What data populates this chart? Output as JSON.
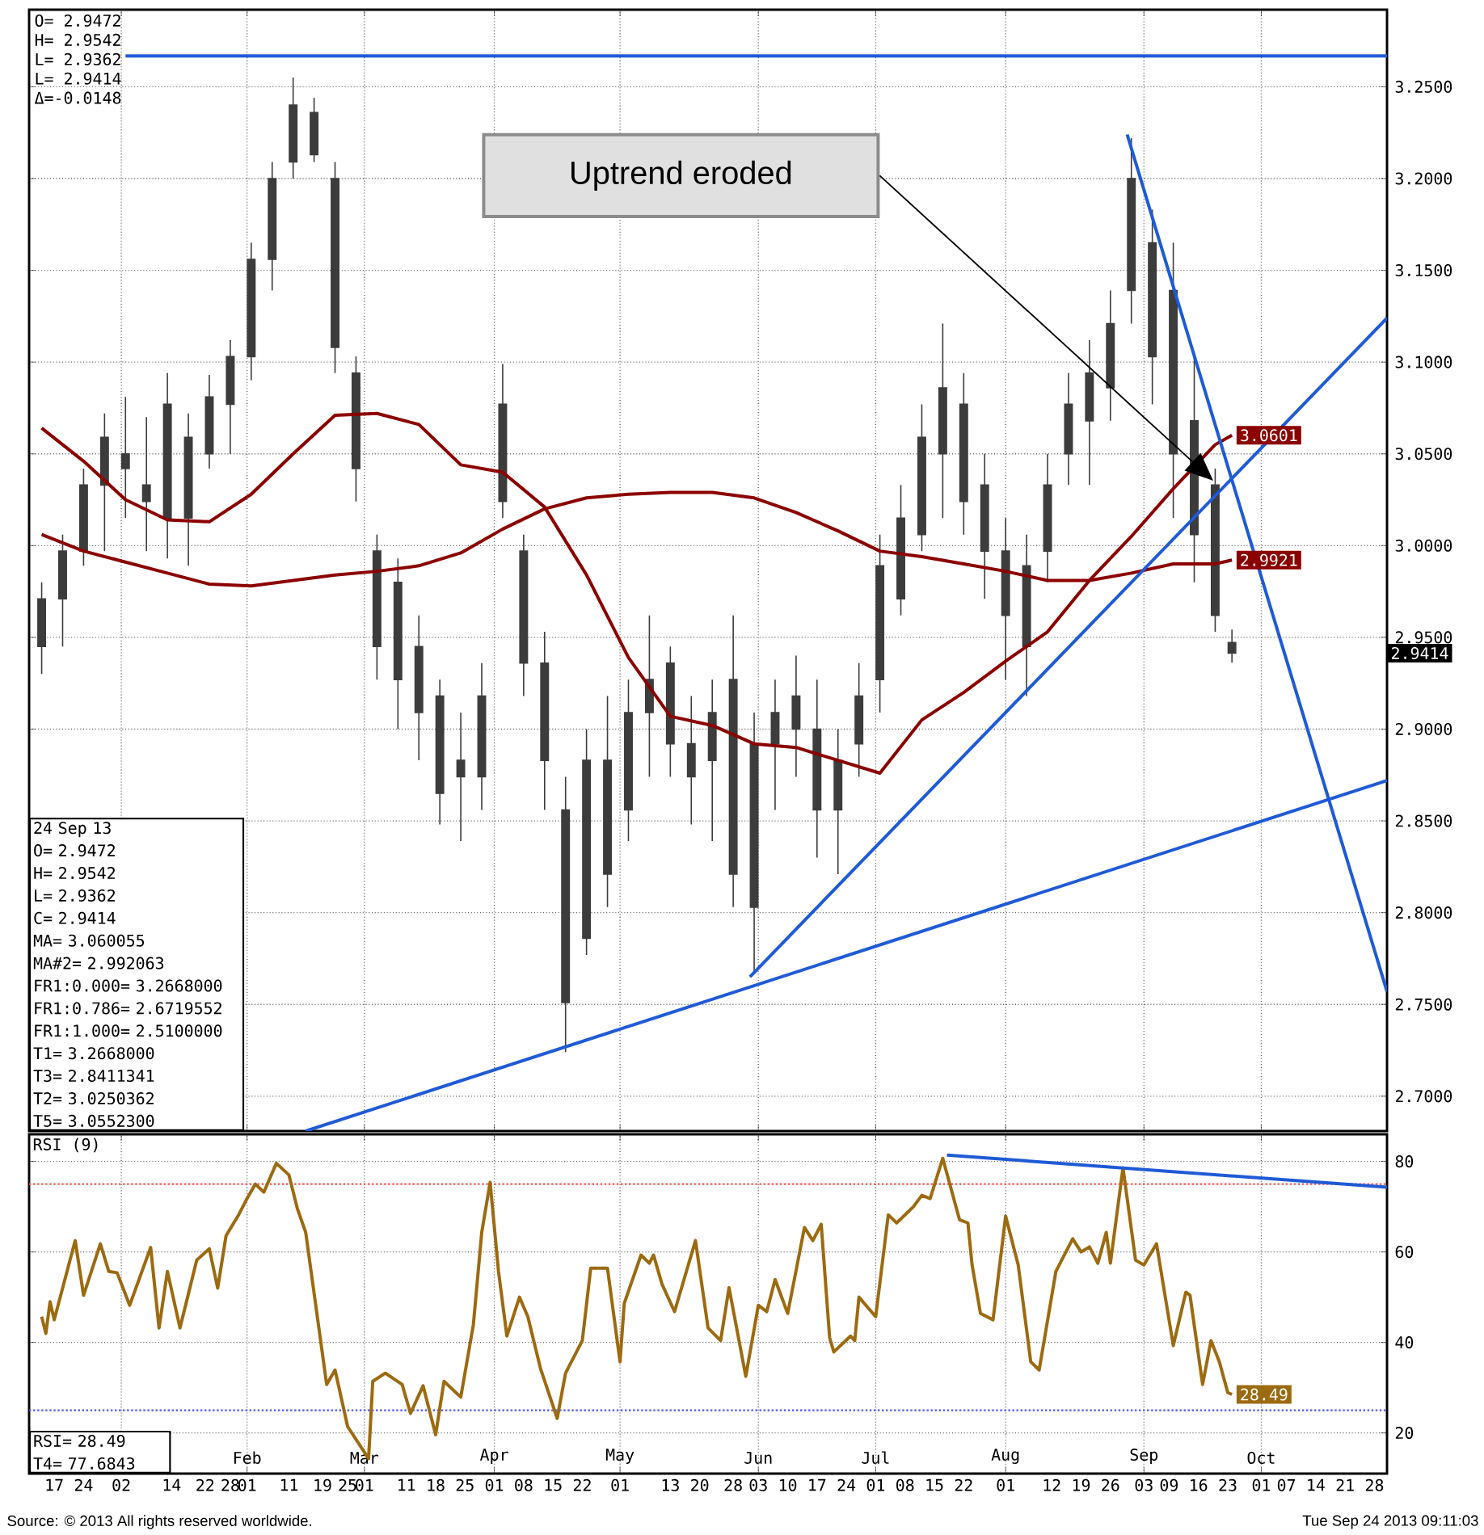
{
  "chart_data": [
    {
      "type": "candlestick",
      "color": "#3c3c3c",
      "x": [
        "2012-12-14",
        "2012-12-19",
        "2012-12-24",
        "2012-12-29",
        "2013-01-03",
        "2013-01-08",
        "2013-01-13",
        "2013-01-18",
        "2013-01-23",
        "2013-01-28",
        "2013-02-02",
        "2013-02-07",
        "2013-02-12",
        "2013-02-17",
        "2013-02-22",
        "2013-02-27",
        "2013-03-04",
        "2013-03-09",
        "2013-03-14",
        "2013-03-19",
        "2013-03-24",
        "2013-03-29",
        "2013-04-03",
        "2013-04-08",
        "2013-04-13",
        "2013-04-18",
        "2013-04-23",
        "2013-04-28",
        "2013-05-03",
        "2013-05-08",
        "2013-05-13",
        "2013-05-18",
        "2013-05-23",
        "2013-05-28",
        "2013-06-02",
        "2013-06-07",
        "2013-06-12",
        "2013-06-17",
        "2013-06-22",
        "2013-06-27",
        "2013-07-02",
        "2013-07-07",
        "2013-07-12",
        "2013-07-17",
        "2013-07-22",
        "2013-07-27",
        "2013-08-01",
        "2013-08-06",
        "2013-08-11",
        "2013-08-16",
        "2013-08-21",
        "2013-08-26",
        "2013-08-31",
        "2013-09-05",
        "2013-09-10",
        "2013-09-15",
        "2013-09-20",
        "2013-09-24"
      ],
      "ohlc": [
        [
          2.945,
          2.98,
          2.93,
          2.971
        ],
        [
          2.971,
          3.006,
          2.945,
          2.997
        ],
        [
          2.997,
          3.042,
          2.989,
          3.033
        ],
        [
          3.033,
          3.072,
          2.997,
          3.059
        ],
        [
          3.05,
          3.081,
          3.015,
          3.042
        ],
        [
          3.033,
          3.07,
          2.997,
          3.024
        ],
        [
          3.015,
          3.094,
          2.993,
          3.077
        ],
        [
          3.059,
          3.072,
          2.989,
          3.015
        ],
        [
          3.05,
          3.093,
          3.042,
          3.081
        ],
        [
          3.077,
          3.112,
          3.05,
          3.103
        ],
        [
          3.103,
          3.165,
          3.09,
          3.156
        ],
        [
          3.156,
          3.209,
          3.139,
          3.2
        ],
        [
          3.209,
          3.255,
          3.2,
          3.24
        ],
        [
          3.236,
          3.244,
          3.209,
          3.213
        ],
        [
          3.2,
          3.209,
          3.094,
          3.108
        ],
        [
          3.094,
          3.103,
          3.024,
          3.042
        ],
        [
          2.997,
          3.006,
          2.927,
          2.945
        ],
        [
          2.98,
          2.993,
          2.9,
          2.927
        ],
        [
          2.945,
          2.962,
          2.883,
          2.909
        ],
        [
          2.918,
          2.927,
          2.848,
          2.865
        ],
        [
          2.883,
          2.909,
          2.839,
          2.874
        ],
        [
          2.874,
          2.936,
          2.856,
          2.918
        ],
        [
          3.024,
          3.099,
          3.015,
          3.077
        ],
        [
          2.997,
          3.006,
          2.918,
          2.936
        ],
        [
          2.936,
          2.953,
          2.856,
          2.883
        ],
        [
          2.856,
          2.874,
          2.724,
          2.751
        ],
        [
          2.786,
          2.9,
          2.777,
          2.883
        ],
        [
          2.883,
          2.918,
          2.803,
          2.821
        ],
        [
          2.856,
          2.927,
          2.839,
          2.909
        ],
        [
          2.909,
          2.962,
          2.874,
          2.927
        ],
        [
          2.936,
          2.945,
          2.874,
          2.892
        ],
        [
          2.892,
          2.918,
          2.848,
          2.874
        ],
        [
          2.883,
          2.927,
          2.839,
          2.909
        ],
        [
          2.927,
          2.962,
          2.803,
          2.821
        ],
        [
          2.803,
          2.909,
          2.768,
          2.892
        ],
        [
          2.892,
          2.927,
          2.856,
          2.909
        ],
        [
          2.918,
          2.94,
          2.874,
          2.9
        ],
        [
          2.9,
          2.927,
          2.83,
          2.856
        ],
        [
          2.856,
          2.9,
          2.821,
          2.883
        ],
        [
          2.892,
          2.936,
          2.874,
          2.918
        ],
        [
          2.927,
          3.006,
          2.909,
          2.989
        ],
        [
          2.971,
          3.033,
          2.962,
          3.015
        ],
        [
          3.006,
          3.077,
          2.997,
          3.059
        ],
        [
          3.05,
          3.121,
          3.015,
          3.086
        ],
        [
          3.077,
          3.094,
          3.006,
          3.024
        ],
        [
          3.033,
          3.05,
          2.971,
          2.997
        ],
        [
          2.997,
          3.015,
          2.927,
          2.962
        ],
        [
          2.945,
          3.006,
          2.918,
          2.989
        ],
        [
          2.997,
          3.05,
          2.98,
          3.033
        ],
        [
          3.05,
          3.094,
          3.033,
          3.077
        ],
        [
          3.068,
          3.112,
          3.033,
          3.094
        ],
        [
          3.086,
          3.139,
          3.068,
          3.121
        ],
        [
          3.139,
          3.222,
          3.121,
          3.2
        ],
        [
          3.165,
          3.183,
          3.077,
          3.103
        ],
        [
          3.139,
          3.165,
          3.015,
          3.05
        ],
        [
          3.068,
          3.103,
          2.98,
          3.006
        ],
        [
          3.033,
          3.042,
          2.953,
          2.962
        ],
        [
          2.9472,
          2.9542,
          2.9362,
          2.9414
        ]
      ],
      "value_labels": [
        null,
        null,
        null,
        null,
        null,
        null,
        null,
        null,
        null,
        null,
        null,
        null,
        null,
        null,
        null,
        null,
        null,
        null,
        null,
        null,
        null,
        null,
        null,
        null,
        null,
        null,
        null,
        null,
        null,
        null,
        null,
        null,
        null,
        null,
        null,
        null,
        null,
        null,
        null,
        null,
        null,
        null,
        null,
        null,
        null,
        null,
        null,
        null,
        null,
        null,
        null,
        null,
        null,
        null,
        null,
        null,
        null,
        "2.9414"
      ],
      "series": [
        {
          "type": "line",
          "color": "#8b0000",
          "x": [
            "2012-12-14",
            "2012-12-24",
            "2013-01-03",
            "2013-01-13",
            "2013-01-23",
            "2013-02-02",
            "2013-02-12",
            "2013-02-22",
            "2013-03-04",
            "2013-03-14",
            "2013-03-24",
            "2013-04-03",
            "2013-04-13",
            "2013-04-23",
            "2013-05-03",
            "2013-05-13",
            "2013-05-23",
            "2013-06-02",
            "2013-06-12",
            "2013-06-22",
            "2013-07-02",
            "2013-07-12",
            "2013-07-22",
            "2013-08-01",
            "2013-08-11",
            "2013-08-21",
            "2013-08-31",
            "2013-09-10",
            "2013-09-20",
            "2013-09-24"
          ],
          "values": [
            3.064,
            3.046,
            3.025,
            3.014,
            3.013,
            3.028,
            3.05,
            3.071,
            3.072,
            3.066,
            3.044,
            3.04,
            3.021,
            2.984,
            2.939,
            2.907,
            2.902,
            2.892,
            2.89,
            2.883,
            2.876,
            2.905,
            2.92,
            2.937,
            2.953,
            2.981,
            3.005,
            3.031,
            3.055,
            3.0601
          ],
          "value_labels": [
            null,
            null,
            null,
            null,
            null,
            null,
            null,
            null,
            null,
            null,
            null,
            null,
            null,
            null,
            null,
            null,
            null,
            null,
            null,
            null,
            null,
            null,
            null,
            null,
            null,
            null,
            null,
            null,
            null,
            "3.0601"
          ]
        },
        {
          "type": "line",
          "color": "#8b0000",
          "x": [
            "2012-12-14",
            "2012-12-24",
            "2013-01-03",
            "2013-01-13",
            "2013-01-23",
            "2013-02-02",
            "2013-02-12",
            "2013-02-22",
            "2013-03-04",
            "2013-03-14",
            "2013-03-24",
            "2013-04-03",
            "2013-04-13",
            "2013-04-23",
            "2013-05-03",
            "2013-05-13",
            "2013-05-23",
            "2013-06-02",
            "2013-06-12",
            "2013-06-22",
            "2013-07-02",
            "2013-07-12",
            "2013-07-22",
            "2013-08-01",
            "2013-08-11",
            "2013-08-21",
            "2013-08-31",
            "2013-09-10",
            "2013-09-20",
            "2013-09-24"
          ],
          "values": [
            3.006,
            2.997,
            2.991,
            2.985,
            2.979,
            2.978,
            2.981,
            2.984,
            2.986,
            2.989,
            2.996,
            3.009,
            3.02,
            3.026,
            3.028,
            3.029,
            3.029,
            3.026,
            3.018,
            3.008,
            2.997,
            2.994,
            2.99,
            2.986,
            2.981,
            2.981,
            2.985,
            2.99,
            2.99,
            2.9921
          ],
          "value_labels": [
            null,
            null,
            null,
            null,
            null,
            null,
            null,
            null,
            null,
            null,
            null,
            null,
            null,
            null,
            null,
            null,
            null,
            null,
            null,
            null,
            null,
            null,
            null,
            null,
            null,
            null,
            null,
            null,
            null,
            "2.9921"
          ]
        },
        {
          "type": "line",
          "color": "#1f5ad7",
          "x": [
            "2013-01-03",
            "2013-10-31"
          ],
          "values": [
            3.2668,
            3.2668
          ]
        },
        {
          "type": "line",
          "color": "#1f5ad7",
          "x": [
            "2013-02-15",
            "2013-10-31"
          ],
          "values": [
            2.681,
            2.872
          ]
        },
        {
          "type": "line",
          "color": "#1f5ad7",
          "x": [
            "2013-06-01",
            "2013-10-31"
          ],
          "values": [
            2.765,
            3.124
          ]
        },
        {
          "type": "line",
          "color": "#1f5ad7",
          "x": [
            "2013-08-30",
            "2013-10-31"
          ],
          "values": [
            3.224,
            2.757
          ]
        }
      ],
      "xlim": [
        "2012-12-11",
        "2013-10-31"
      ],
      "ylim": [
        2.681,
        3.292
      ],
      "xticks": [
        {
          "value": "2013-01-02",
          "label": null
        },
        {
          "value": "2013-02-01",
          "label": null
        },
        {
          "value": "2013-03-01",
          "label": null
        },
        {
          "value": "2013-04-01",
          "label": null
        },
        {
          "value": "2013-05-01",
          "label": null
        },
        {
          "value": "2013-06-03",
          "label": null
        },
        {
          "value": "2013-07-01",
          "label": null
        },
        {
          "value": "2013-08-01",
          "label": null
        },
        {
          "value": "2013-09-03",
          "label": null
        },
        {
          "value": "2013-10-01",
          "label": null
        }
      ],
      "yticks": [
        {
          "value": 2.7,
          "label": "2.7000"
        },
        {
          "value": 2.75,
          "label": "2.7500"
        },
        {
          "value": 2.8,
          "label": "2.8000"
        },
        {
          "value": 2.85,
          "label": "2.8500"
        },
        {
          "value": 2.9,
          "label": "2.9000"
        },
        {
          "value": 2.95,
          "label": "2.9500"
        },
        {
          "value": 3.0,
          "label": "3.0000"
        },
        {
          "value": 3.05,
          "label": "3.0500"
        },
        {
          "value": 3.1,
          "label": "3.1000"
        },
        {
          "value": 3.15,
          "label": "3.1500"
        },
        {
          "value": 3.2,
          "label": "3.2000"
        },
        {
          "value": 3.25,
          "label": "3.2500"
        }
      ],
      "tick_labels": "y",
      "grid": true,
      "annotations": [
        "O= 2.9472",
        "H= 2.9542",
        "L= 2.9362",
        "L= 2.9414",
        "Δ=-0.0148",
        "24 Sep 13",
        "O= 2.9472",
        "H= 2.9542",
        "L= 2.9362",
        "C= 2.9414",
        "MA= 3.060055",
        "MA#2= 2.992063",
        "FR1:0.000= 3.2668000",
        "FR1:0.786= 2.6719552",
        "FR1:1.000= 2.5100000",
        "T1= 3.2668000",
        "T3= 2.8411341",
        "T2= 3.0250362",
        "T5= 3.0552300",
        "Uptrend eroded"
      ]
    },
    {
      "type": "line",
      "title": "RSI (9)",
      "series": [
        {
          "color": "#9c6a10",
          "x": [
            "2012-12-14",
            "2012-12-15",
            "2012-12-16",
            "2012-12-17",
            "2012-12-22",
            "2012-12-24",
            "2012-12-28",
            "2012-12-30",
            "2013-01-01",
            "2013-01-04",
            "2013-01-09",
            "2013-01-11",
            "2013-01-13",
            "2013-01-16",
            "2013-01-20",
            "2013-01-23",
            "2013-01-25",
            "2013-01-27",
            "2013-01-30",
            "2013-02-01",
            "2013-02-03",
            "2013-02-05",
            "2013-02-08",
            "2013-02-11",
            "2013-02-13",
            "2013-02-15",
            "2013-02-20",
            "2013-02-22",
            "2013-02-25",
            "2013-03-02",
            "2013-03-03",
            "2013-03-06",
            "2013-03-10",
            "2013-03-12",
            "2013-03-15",
            "2013-03-18",
            "2013-03-20",
            "2013-03-24",
            "2013-03-27",
            "2013-03-29",
            "2013-03-31",
            "2013-04-02",
            "2013-04-04",
            "2013-04-07",
            "2013-04-09",
            "2013-04-12",
            "2013-04-16",
            "2013-04-18",
            "2013-04-22",
            "2013-04-24",
            "2013-04-28",
            "2013-05-01",
            "2013-05-02",
            "2013-05-06",
            "2013-05-08",
            "2013-05-09",
            "2013-05-11",
            "2013-05-14",
            "2013-05-19",
            "2013-05-22",
            "2013-05-25",
            "2013-05-27",
            "2013-05-31",
            "2013-06-03",
            "2013-06-05",
            "2013-06-07",
            "2013-06-10",
            "2013-06-14",
            "2013-06-16",
            "2013-06-18",
            "2013-06-20",
            "2013-06-21",
            "2013-06-25",
            "2013-06-26",
            "2013-06-27",
            "2013-07-01",
            "2013-07-04",
            "2013-07-06",
            "2013-07-10",
            "2013-07-12",
            "2013-07-14",
            "2013-07-17",
            "2013-07-21",
            "2013-07-23",
            "2013-07-24",
            "2013-07-26",
            "2013-07-29",
            "2013-08-01",
            "2013-08-04",
            "2013-08-07",
            "2013-08-09",
            "2013-08-13",
            "2013-08-17",
            "2013-08-19",
            "2013-08-21",
            "2013-08-23",
            "2013-08-25",
            "2013-08-26",
            "2013-08-29",
            "2013-09-01",
            "2013-09-03",
            "2013-09-06",
            "2013-09-10",
            "2013-09-13",
            "2013-09-14",
            "2013-09-17",
            "2013-09-19",
            "2013-09-21",
            "2013-09-23",
            "2013-09-24"
          ],
          "values": [
            45.7,
            42,
            49,
            45,
            62.5,
            50.4,
            61.8,
            55.7,
            55.4,
            48.2,
            61,
            43.2,
            55.7,
            43.2,
            58.2,
            60.7,
            52,
            63.6,
            68.2,
            71.8,
            75,
            73.2,
            79.6,
            77,
            69.6,
            64.3,
            30.7,
            33.9,
            21.4,
            14.3,
            31.4,
            33.2,
            30.7,
            24.3,
            30.4,
            19.6,
            31.4,
            27.9,
            43.9,
            64.3,
            75.4,
            55.7,
            41.4,
            50,
            45.7,
            34.3,
            23.2,
            33.2,
            40.4,
            56.4,
            56.4,
            35.7,
            48.6,
            59.3,
            57.5,
            59.3,
            52.9,
            46.8,
            62.5,
            43.2,
            40.4,
            52.1,
            32.5,
            48.2,
            46.8,
            53.9,
            46.4,
            65.4,
            62.5,
            66.1,
            41.1,
            37.9,
            41.4,
            40.4,
            50,
            45.7,
            68.2,
            66.4,
            70,
            72.5,
            71.8,
            80.7,
            67.1,
            66.4,
            57.1,
            46.4,
            45,
            67.9,
            57.1,
            35.7,
            33.9,
            55.7,
            62.9,
            60,
            61.1,
            57.5,
            64.3,
            57.5,
            78.6,
            58.2,
            57.1,
            61.8,
            39.3,
            51.1,
            50.4,
            30.7,
            40.4,
            35.7,
            28.9,
            28.49
          ],
          "value_labels": [
            null,
            null,
            null,
            null,
            null,
            null,
            null,
            null,
            null,
            null,
            null,
            null,
            null,
            null,
            null,
            null,
            null,
            null,
            null,
            null,
            null,
            null,
            null,
            null,
            null,
            null,
            null,
            null,
            null,
            null,
            null,
            null,
            null,
            null,
            null,
            null,
            null,
            null,
            null,
            null,
            null,
            null,
            null,
            null,
            null,
            null,
            null,
            null,
            null,
            null,
            null,
            null,
            null,
            null,
            null,
            null,
            null,
            null,
            null,
            null,
            null,
            null,
            null,
            null,
            null,
            null,
            null,
            null,
            null,
            null,
            null,
            null,
            null,
            null,
            null,
            null,
            null,
            null,
            null,
            null,
            null,
            null,
            null,
            null,
            null,
            null,
            null,
            null,
            null,
            null,
            null,
            null,
            null,
            null,
            null,
            null,
            null,
            null,
            null,
            null,
            null,
            null,
            null,
            null,
            null,
            null,
            null,
            null,
            null,
            "28.49"
          ]
        },
        {
          "color": "#1f5ad7",
          "x": [
            "2013-07-18",
            "2013-10-31"
          ],
          "values": [
            81.4,
            74.3
          ]
        }
      ],
      "xlim": [
        "2012-12-11",
        "2013-10-31"
      ],
      "ylim": [
        11,
        86
      ],
      "xticks": [
        {
          "value": "2013-01-02",
          "label": null
        },
        {
          "value": "2013-02-01",
          "label": "Feb"
        },
        {
          "value": "2013-03-01",
          "label": "Mar"
        },
        {
          "value": "2013-04-01",
          "label": "Apr"
        },
        {
          "value": "2013-05-01",
          "label": "May"
        },
        {
          "value": "2013-06-03",
          "label": "Jun"
        },
        {
          "value": "2013-07-01",
          "label": "Jul"
        },
        {
          "value": "2013-08-01",
          "label": "Aug"
        },
        {
          "value": "2013-09-03",
          "label": "Sep"
        },
        {
          "value": "2013-10-01",
          "label": "Oct"
        }
      ],
      "x2ticks": [
        {
          "value": "2012-12-17",
          "label": "17"
        },
        {
          "value": "2012-12-24",
          "label": "24"
        },
        {
          "value": "2013-01-02",
          "label": "02"
        },
        {
          "value": "2013-01-14",
          "label": "14"
        },
        {
          "value": "2013-01-22",
          "label": "22"
        },
        {
          "value": "2013-01-28",
          "label": "28"
        },
        {
          "value": "2013-02-01",
          "label": "01"
        },
        {
          "value": "2013-02-11",
          "label": "11"
        },
        {
          "value": "2013-02-19",
          "label": "19"
        },
        {
          "value": "2013-02-25",
          "label": "25"
        },
        {
          "value": "2013-03-01",
          "label": "01"
        },
        {
          "value": "2013-03-11",
          "label": "11"
        },
        {
          "value": "2013-03-18",
          "label": "18"
        },
        {
          "value": "2013-03-25",
          "label": "25"
        },
        {
          "value": "2013-04-01",
          "label": "01"
        },
        {
          "value": "2013-04-08",
          "label": "08"
        },
        {
          "value": "2013-04-15",
          "label": "15"
        },
        {
          "value": "2013-04-22",
          "label": "22"
        },
        {
          "value": "2013-05-01",
          "label": "01"
        },
        {
          "value": "2013-05-13",
          "label": "13"
        },
        {
          "value": "2013-05-20",
          "label": "20"
        },
        {
          "value": "2013-05-28",
          "label": "28"
        },
        {
          "value": "2013-06-03",
          "label": "03"
        },
        {
          "value": "2013-06-10",
          "label": "10"
        },
        {
          "value": "2013-06-17",
          "label": "17"
        },
        {
          "value": "2013-06-24",
          "label": "24"
        },
        {
          "value": "2013-07-01",
          "label": "01"
        },
        {
          "value": "2013-07-08",
          "label": "08"
        },
        {
          "value": "2013-07-15",
          "label": "15"
        },
        {
          "value": "2013-07-22",
          "label": "22"
        },
        {
          "value": "2013-08-01",
          "label": "01"
        },
        {
          "value": "2013-08-12",
          "label": "12"
        },
        {
          "value": "2013-08-19",
          "label": "19"
        },
        {
          "value": "2013-08-26",
          "label": "26"
        },
        {
          "value": "2013-09-03",
          "label": "03"
        },
        {
          "value": "2013-09-09",
          "label": "09"
        },
        {
          "value": "2013-09-16",
          "label": "16"
        },
        {
          "value": "2013-09-23",
          "label": "23"
        },
        {
          "value": "2013-10-01",
          "label": "01"
        },
        {
          "value": "2013-10-07",
          "label": "07"
        },
        {
          "value": "2013-10-14",
          "label": "14"
        },
        {
          "value": "2013-10-21",
          "label": "21"
        },
        {
          "value": "2013-10-28",
          "label": "28"
        }
      ],
      "x2lim": [
        "2012-12-11",
        "2013-10-31"
      ],
      "yticks": [
        20,
        40,
        60,
        80
      ],
      "grid": true,
      "ref_lines": [
        {
          "axis": "y",
          "value": 75,
          "color": "#ff5050",
          "line_style": "dotted"
        },
        {
          "axis": "y",
          "value": 25,
          "color": "#5050ff",
          "line_style": "dotted"
        }
      ],
      "annotations": [
        "RSI= 28.49",
        "T4= 77.6843",
        "Source: © 2013 All rights reserved worldwide.",
        "Tue Sep 24 2013 09:11:03"
      ]
    }
  ]
}
